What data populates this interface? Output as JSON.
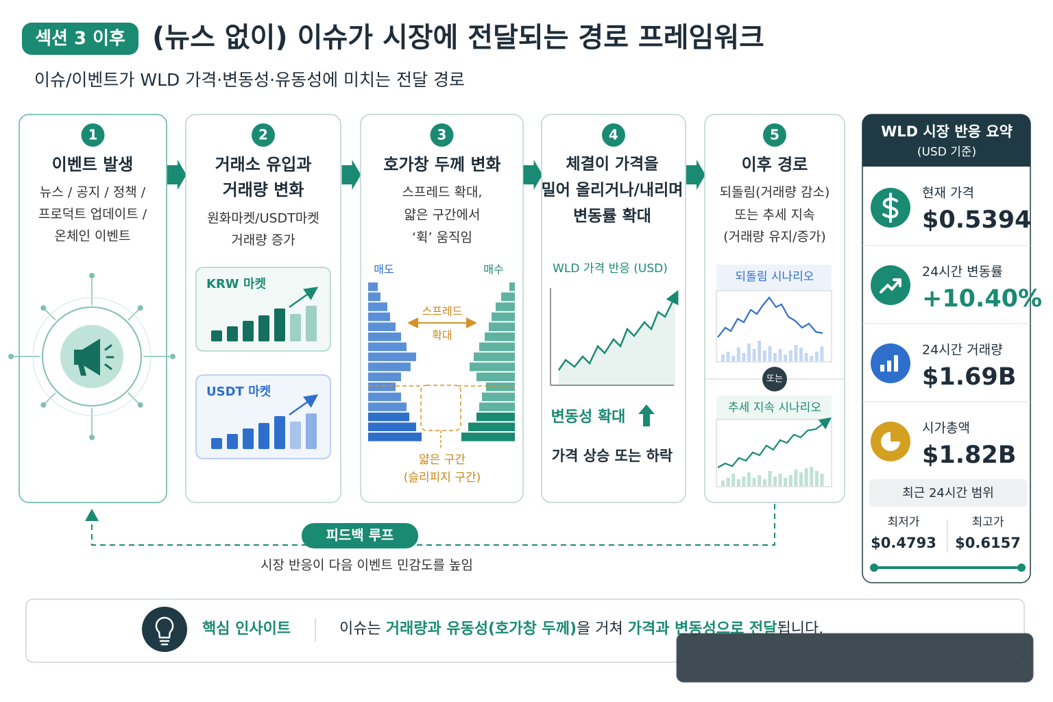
{
  "header": {
    "badge": "섹션 3 이후",
    "title": "(뉴스 없이) 이슈가 시장에 전달되는 경로 프레임워크",
    "subtitle": "이슈/이벤트가 WLD 가격·변동성·유동성에 미치는 전달 경로"
  },
  "steps": [
    {
      "number": "1",
      "title": [
        "이벤트 발생"
      ],
      "description": [
        "뉴스 / 공지 / 정책 /",
        "프로덕트 업데이트 /",
        "온체인 이벤트"
      ]
    },
    {
      "number": "2",
      "title": [
        "거래소 유입과",
        "거래량 변화"
      ],
      "description": [
        "원화마켓/USDT마켓",
        "거래량 증가"
      ],
      "panels": [
        "KRW 마켓",
        "USDT 마켓"
      ]
    },
    {
      "number": "3",
      "title": [
        "호가창 두께 변화"
      ],
      "description": [
        "스프레드 확대,",
        "얇은 구간에서",
        "‘휙’ 움직임"
      ],
      "sell": "매도",
      "buy": "매수",
      "spread": [
        "스프레드",
        "확대"
      ],
      "thin": [
        "얇은 구간",
        "(슬리피지 구간)"
      ]
    },
    {
      "number": "4",
      "title": [
        "체결이 가격을",
        "밀어 올리거나/내리며",
        "변동률 확대"
      ],
      "chart_title": "WLD 가격 반응 (USD)",
      "note_volatility": "변동성 확대",
      "note_price": "가격 상승 또는 하락"
    },
    {
      "number": "5",
      "title": [
        "이후 경로"
      ],
      "description": [
        "되돌림(거래량 감소)",
        "또는 추세 지속",
        "(거래량 유지/증가)"
      ],
      "scenario_revert": "되돌림 시나리오",
      "or": "또는",
      "scenario_trend": "추세 지속 시나리오"
    }
  ],
  "feedback": {
    "label": "피드백 루프",
    "caption": "시장 반응이 다음 이벤트 민감도를 높임"
  },
  "summary": {
    "title": "WLD 시장 반응 요약",
    "subtitle": "(USD 기준)",
    "metrics": [
      {
        "label": "현재 가격",
        "value": "$0.5394"
      },
      {
        "label": "24시간 변동률",
        "value": "+10.40%"
      },
      {
        "label": "24시간 거래량",
        "value": "$1.69B"
      },
      {
        "label": "시가총액",
        "value": "$1.82B"
      }
    ],
    "range": {
      "title": "최근 24시간 범위",
      "low_label": "최저가",
      "low": "$0.4793",
      "high_label": "최고가",
      "high": "$0.6157"
    }
  },
  "insight": {
    "label": "핵심 인사이트",
    "text": [
      "이슈는 ",
      "거래량과 유동성(호가창 두께)",
      "을 거쳐 ",
      "가격과 변동성으로 전달",
      "됩니다."
    ]
  }
}
